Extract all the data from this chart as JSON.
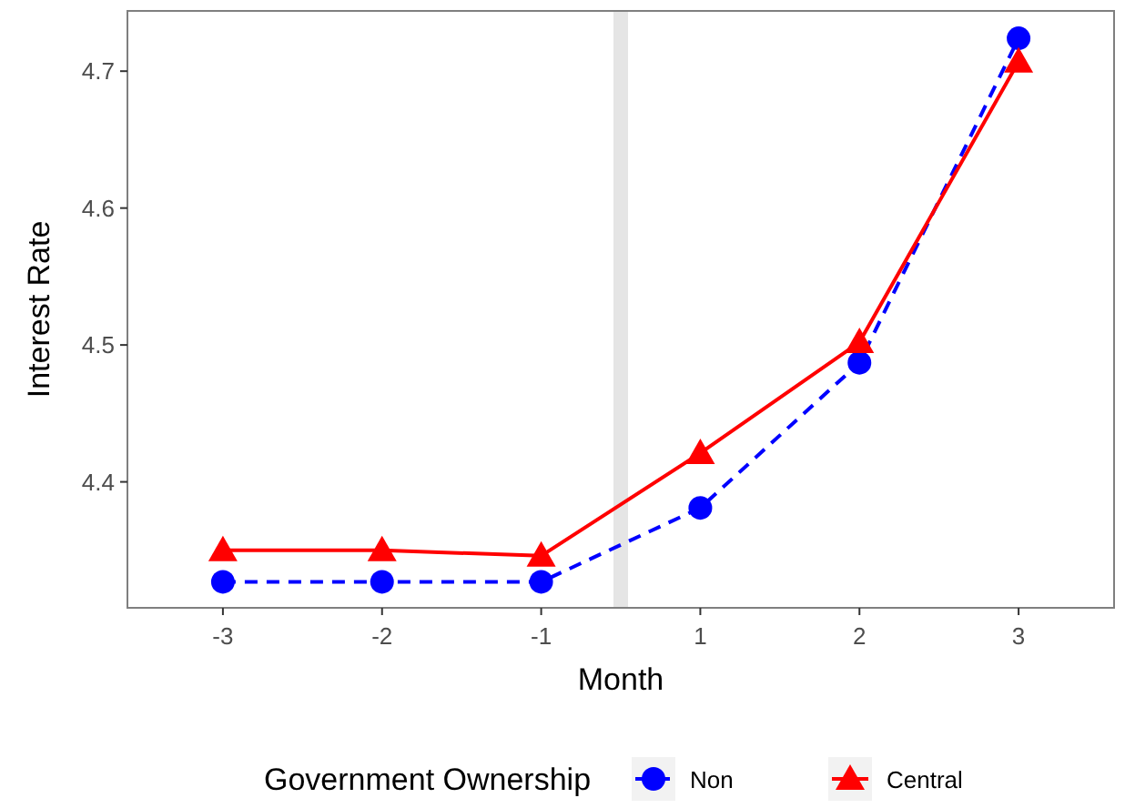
{
  "chart_data": {
    "type": "line",
    "xlabel": "Month",
    "ylabel": "Interest Rate",
    "legend_title": "Government Ownership",
    "legend": "bottom",
    "grid": false,
    "categories": [
      "-3",
      "-2",
      "-1",
      "1",
      "2",
      "3"
    ],
    "ylim": [
      4.308,
      4.744
    ],
    "yticks": [
      4.4,
      4.5,
      4.6,
      4.7
    ],
    "series": [
      {
        "name": "Non",
        "color": "#0000ff",
        "marker": "circle",
        "line_style": "dashed",
        "values": [
          4.327,
          4.327,
          4.327,
          4.381,
          4.487,
          4.724
        ]
      },
      {
        "name": "Central",
        "color": "#ff0000",
        "marker": "triangle",
        "line_style": "solid",
        "values": [
          4.35,
          4.35,
          4.346,
          4.421,
          4.502,
          4.707
        ]
      }
    ]
  }
}
